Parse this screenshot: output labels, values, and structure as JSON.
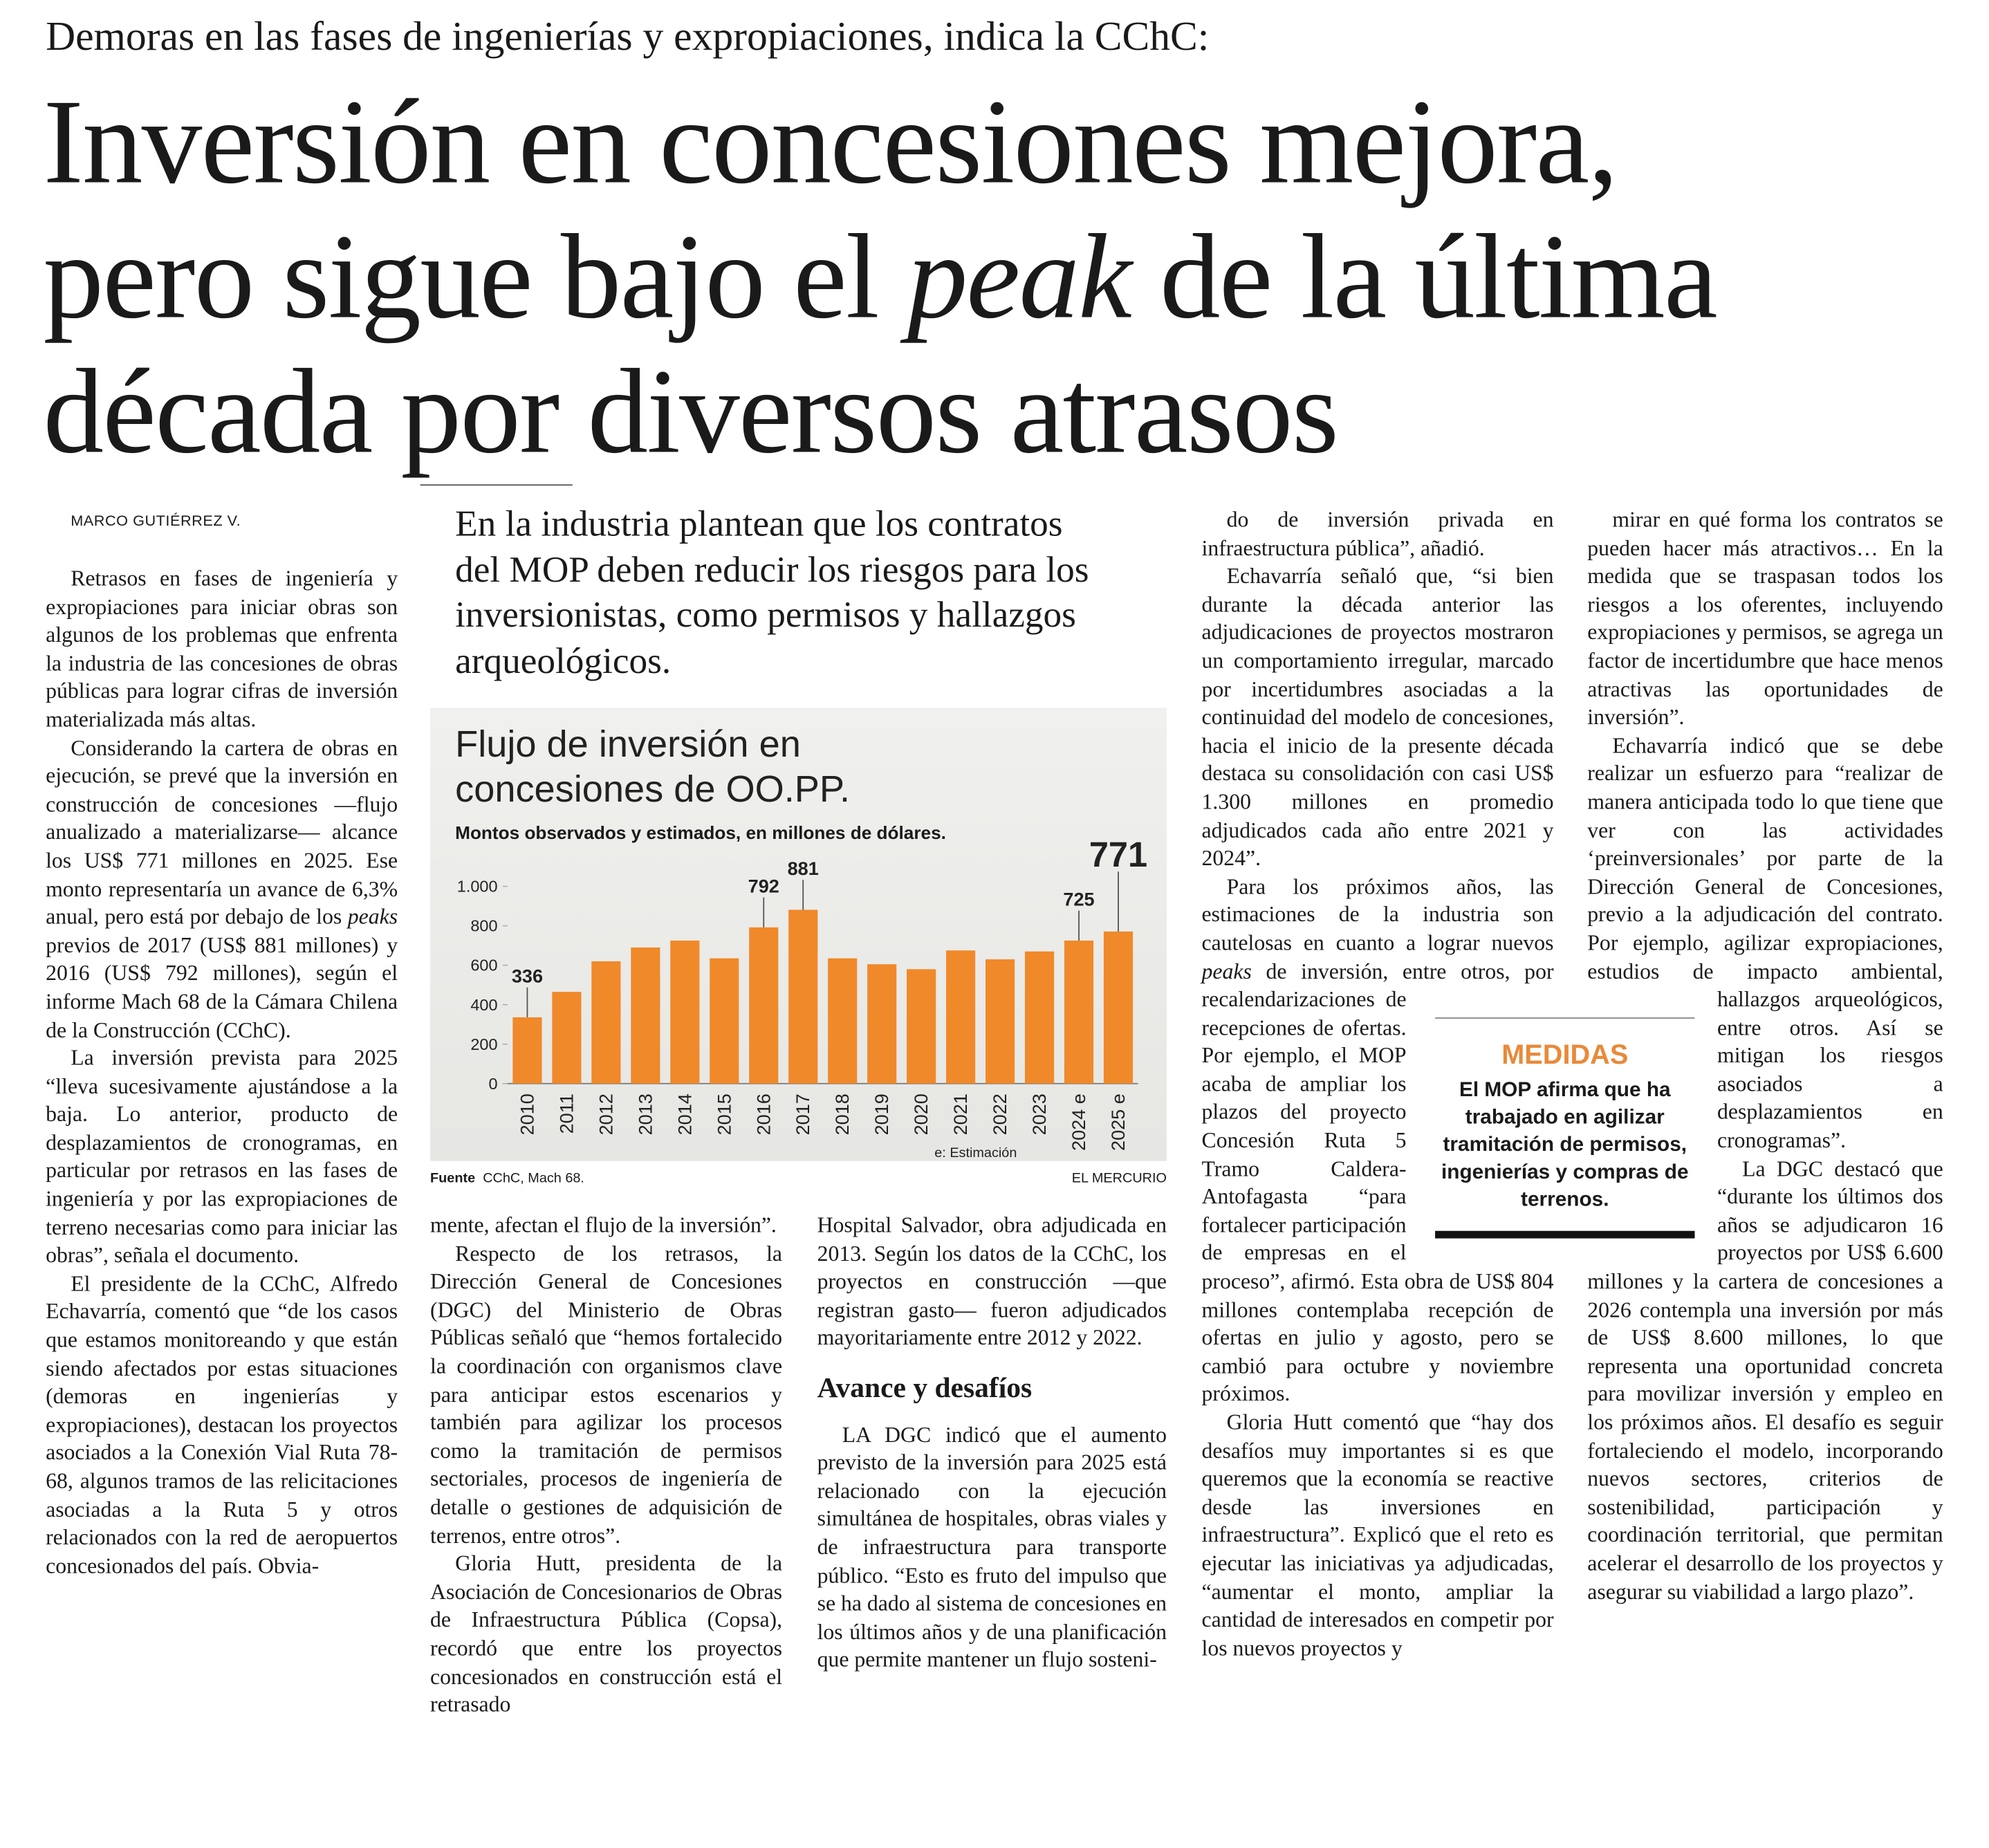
{
  "kicker": "Demoras en las fases de ingenierías y expropiaciones, indica la CChC:",
  "headline": [
    "Inversión en concesiones mejora, pero sigue bajo el ",
    "peak",
    " de la última década por diversos atrasos"
  ],
  "byline": "MARCO GUTIÉRREZ V.",
  "pull_quote": "En la industria plantean que los contratos del MOP deben reducir los riesgos para los inversionistas, como permisos y hallazgos arqueológicos.",
  "chart_data": {
    "type": "bar",
    "title": "Flujo de inversión en concesiones de OO.PP.",
    "subtitle": "Montos observados y estimados, en millones de dólares.",
    "categories": [
      "2010",
      "2011",
      "2012",
      "2013",
      "2014",
      "2015",
      "2016",
      "2017",
      "2018",
      "2019",
      "2020",
      "2021",
      "2022",
      "2023",
      "2024 e",
      "2025 e"
    ],
    "values": [
      336,
      465,
      620,
      690,
      725,
      635,
      792,
      881,
      635,
      605,
      580,
      675,
      630,
      670,
      725,
      771
    ],
    "value_labels": [
      "336",
      null,
      null,
      null,
      null,
      null,
      "792",
      "881",
      null,
      null,
      null,
      null,
      null,
      null,
      "725",
      "771"
    ],
    "color": "#f0892a",
    "ylim": [
      0,
      1000
    ],
    "yticks": [
      0,
      200,
      400,
      600,
      800,
      {
        "value": 1000,
        "label": "1.000"
      }
    ],
    "grid": false,
    "note": "e: Estimación",
    "source_label": "Fuente",
    "source": "CChC, Mach 68.",
    "credit": "EL MERCURIO"
  },
  "sidebar": {
    "title": "MEDIDAS",
    "text": "El MOP afirma que ha trabajado en agilizar tramitación de permisos, ingenierías y compras de terrenos."
  },
  "body": {
    "columns": [
      [
        [
          "Retrasos en fases de ingeniería y expropiaciones para iniciar obras son algunos de los problemas que enfrenta la industria de las concesiones de obras públicas para lograr cifras de inversión materializada más altas."
        ],
        [
          "Considerando la cartera de obras en ejecución, se prevé que la inversión en construcción de concesiones —flujo anualizado a materializarse— alcance los US$ 771 millones en 2025. Ese monto representaría un avance de 6,3% anual, pero está por debajo de los ",
          "peaks",
          " previos de 2017 (US$ 881 millones) y 2016 (US$ 792 millones), según el informe Mach 68 de la Cámara Chilena de la Construcción (CChC)."
        ],
        [
          "La inversión prevista para 2025 “lleva sucesivamente ajustándose a la baja. Lo anterior, producto de desplazamientos de cronogramas, en particular por retrasos en las fases de ingeniería y por las expropiaciones de terreno necesarias como para iniciar las obras”, señala el documento."
        ],
        [
          "El presidente de la CChC, Alfredo Echavarría, comentó que “de los casos que estamos monitoreando y que están siendo afectados por estas situaciones (demoras en ingenierías y expropiaciones), destacan los proyectos asociados a la Conexión Vial Ruta 78-68, algunos tramos de las relicitaciones asociadas a la Ruta 5 y otros relacionados con la red de aeropuertos concesionados del país. Obvia-"
        ]
      ],
      [
        [
          "mente, afectan el flujo de la inversión”."
        ],
        [
          "Respecto de los retrasos, la Dirección General de Concesiones (DGC) del Ministerio de Obras Públicas señaló que “hemos fortalecido la coordinación con organismos clave para anticipar estos escenarios y también para agilizar los procesos como la tramitación de permisos sectoriales, procesos de ingeniería de detalle o gestiones de adquisición de terrenos, entre otros”."
        ],
        [
          "Gloria Hutt, presidenta de la Asociación de Concesionarios de Obras de Infraestructura Pública (Copsa), recordó que entre los proyectos concesionados en construcción está el retrasado"
        ]
      ],
      [
        [
          "Hospital Salvador, obra adjudicada en 2013. Según los datos de la CChC, los proyectos en construcción —que registran gasto— fueron adjudicados mayoritariamente entre 2012 y 2022."
        ],
        {
          "heading": "Avance y desafíos"
        },
        [
          "LA DGC indicó que el aumento previsto de la inversión para 2025 está relacionado con la ejecución simultánea de hospitales, obras viales y de infraestructura para transporte público. “Esto es fruto del impulso que se ha dado al sistema de concesiones en los últimos años y de una planificación que permite mantener un flujo sosteni-"
        ]
      ],
      [
        [
          "do de inversión privada en infraestructura pública”, añadió."
        ],
        [
          "Echavarría señaló que, “si bien durante la década anterior las adjudicaciones de proyectos mostraron un comportamiento irregular, marcado por incertidumbres asociadas a la continuidad del modelo de concesiones, hacia el inicio de la presente década destaca su consolidación con casi US$ 1.300 millones en promedio adjudicados cada año entre 2021 y 2024”."
        ],
        [
          "Para los próximos años, las estimaciones de la industria son cautelosas en cuanto a lograr nuevos ",
          "peaks",
          " de inversión, entre otros, por recalendarizaciones de recepciones de ofertas. Por ejemplo, el MOP acaba de ampliar los plazos del proyecto Concesión Ruta 5 Tramo Caldera-Antofagasta “para fortalecer participación de empresas en el proceso”, afirmó. Esta obra de US$ 804 millones contemplaba recepción de ofertas en julio y agosto, pero se cambió para octubre y noviembre próximos."
        ],
        [
          "Gloria Hutt comentó que “hay dos desafíos muy importantes si es que queremos que la economía se reactive desde las inversiones en infraestructura”. Explicó que el reto es ejecutar las iniciativas ya adjudicadas, “aumentar el monto, ampliar la cantidad de interesados en competir por los nuevos proyectos y"
        ]
      ],
      [
        [
          "mirar en qué forma los contratos se pueden hacer más atractivos… En la medida que se traspasan todos los riesgos a los oferentes, incluyendo expropiaciones y permisos, se agrega un factor de incertidumbre que hace menos atractivas las oportunidades de inversión”."
        ],
        [
          "Echavarría indicó que se debe realizar un esfuerzo para “realizar de manera anticipada todo lo que tiene que ver con las actividades ‘preinversionales’ por parte de la Dirección General de Concesiones, previo a la adjudicación del contrato. Por ejemplo, agilizar expropiaciones, estudios de impacto ambiental, hallazgos arqueológicos, entre otros. Así se mitigan los riesgos asociados a desplazamientos en cronogramas”."
        ],
        [
          "La DGC destacó que “durante los últimos dos años se adjudicaron 16 proyectos por US$ 6.600 millones y la cartera de concesiones a 2026 contempla una inversión por más de US$ 8.600 millones, lo que representa una oportunidad concreta para movilizar inversión y empleo en los próximos años. El desafío es seguir fortaleciendo el modelo, incorporando nuevos sectores, criterios de sostenibilidad, participación y coordinación territorial, que permitan acelerar el desarrollo de los proyectos y asegurar su viabilidad a largo plazo”."
        ]
      ]
    ]
  }
}
